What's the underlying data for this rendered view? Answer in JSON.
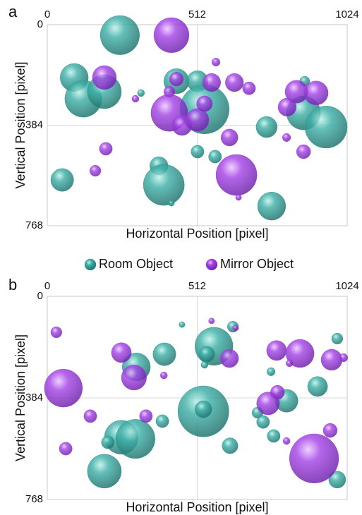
{
  "chart_data": [
    {
      "type": "scatter",
      "panel_label": "a",
      "xlabel": "Horizontal Position [pixel]",
      "ylabel": "Vertical Position [pixel]",
      "xlim": [
        0,
        1024
      ],
      "ylim": [
        0,
        768
      ],
      "xticks": [
        0,
        512,
        1024
      ],
      "yticks": [
        0,
        384,
        768
      ],
      "y_inverted": true,
      "grid": true,
      "legend": "bottom",
      "series": [
        {
          "name": "Room Object",
          "color": "#2e9a94",
          "x": [
            248,
            92,
            123,
            195,
            441,
            513,
            537,
            320,
            879,
            875,
            952,
            749,
            513,
            573,
            51,
            381,
            398,
            424,
            766
          ],
          "values": [
            40,
            202,
            283,
            256,
            216,
            216,
            323,
            261,
            216,
            337,
            391,
            391,
            485,
            504,
            593,
            539,
            612,
            682,
            693
          ],
          "sizes": [
            67,
            48,
            63,
            58,
            43,
            36,
            84,
            12,
            17,
            58,
            72,
            36,
            22,
            22,
            39,
            31,
            70,
            10,
            48
          ]
        },
        {
          "name": "Mirror Object",
          "color": "#a040e0",
          "x": [
            424,
            195,
            301,
            417,
            441,
            417,
            460,
            513,
            537,
            576,
            561,
            639,
            689,
            851,
            918,
            819,
            622,
            817,
            875,
            200,
            164,
            646,
            653
          ],
          "values": [
            40,
            202,
            283,
            256,
            208,
            337,
            385,
            364,
            302,
            143,
            221,
            221,
            243,
            256,
            261,
            315,
            431,
            431,
            485,
            474,
            558,
            574,
            660
          ],
          "sizes": [
            60,
            41,
            12,
            19,
            24,
            63,
            34,
            39,
            27,
            14,
            31,
            31,
            22,
            39,
            41,
            31,
            29,
            14,
            24,
            22,
            19,
            70,
            10
          ]
        }
      ]
    },
    {
      "type": "scatter",
      "panel_label": "b",
      "xlabel": "Horizontal Position [pixel]",
      "ylabel": "Vertical Position [pixel]",
      "xlim": [
        0,
        1024
      ],
      "ylim": [
        0,
        768
      ],
      "xticks": [
        0,
        512,
        1024
      ],
      "yticks": [
        0,
        384,
        768
      ],
      "y_inverted": true,
      "grid": true,
      "series": [
        {
          "name": "Room Object",
          "color": "#2e9a94",
          "x": [
            460,
            634,
            569,
            545,
            400,
            304,
            537,
            764,
            990,
            923,
            533,
            533,
            817,
            718,
            737,
            773,
            393,
            253,
            207,
            301,
            195,
            624,
            990
          ],
          "values": [
            107,
            115,
            189,
            219,
            219,
            267,
            259,
            285,
            160,
            341,
            435,
            427,
            395,
            440,
            475,
            528,
            472,
            533,
            552,
            539,
            661,
            565,
            693
          ],
          "sizes": [
            10,
            19,
            65,
            27,
            39,
            48,
            12,
            14,
            19,
            34,
            87,
            29,
            39,
            19,
            22,
            22,
            22,
            58,
            22,
            67,
            58,
            27,
            29
          ]
        },
        {
          "name": "Mirror Object",
          "color": "#a040e0",
          "x": [
            31,
            561,
            643,
            253,
            296,
            398,
            622,
            783,
            863,
            827,
            971,
            1012,
            55,
            786,
            754,
            147,
            337,
            966,
            817,
            63,
            911
          ],
          "values": [
            136,
            93,
            120,
            213,
            307,
            299,
            235,
            205,
            216,
            253,
            240,
            232,
            347,
            363,
            405,
            453,
            453,
            507,
            547,
            576,
            613
          ],
          "sizes": [
            19,
            10,
            10,
            34,
            43,
            12,
            31,
            34,
            48,
            12,
            36,
            14,
            65,
            24,
            39,
            22,
            22,
            24,
            12,
            22,
            84
          ]
        }
      ]
    }
  ]
}
